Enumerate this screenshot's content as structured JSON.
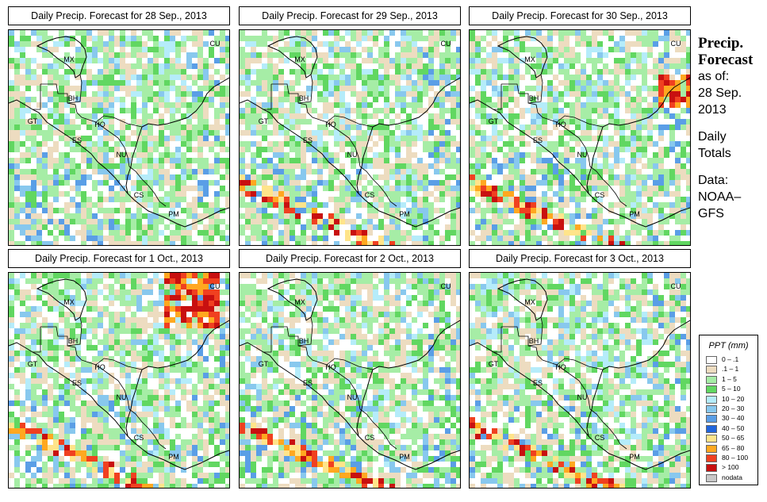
{
  "panels": [
    {
      "title": "Daily Precip. Forecast for  28 Sep., 2013",
      "seed": 11
    },
    {
      "title": "Daily Precip. Forecast for  29 Sep., 2013",
      "seed": 23
    },
    {
      "title": "Daily Precip. Forecast for  30 Sep., 2013",
      "seed": 37
    },
    {
      "title": "Daily Precip. Forecast for  1 Oct., 2013",
      "seed": 41
    },
    {
      "title": "Daily Precip. Forecast for  2 Oct., 2013",
      "seed": 53
    },
    {
      "title": "Daily Precip. Forecast for  3 Oct., 2013",
      "seed": 67
    }
  ],
  "country_labels": [
    "MX",
    "BH",
    "GT",
    "HO",
    "ES",
    "NU",
    "CS",
    "PM",
    "CU"
  ],
  "side": {
    "title_line1": "Precip.",
    "title_line2": "Forecast",
    "asof": "as of:",
    "date1": "28 Sep.",
    "date2": "2013",
    "daily": "Daily",
    "totals": "Totals",
    "data_label": "Data:",
    "source1": "NOAA–",
    "source2": "GFS"
  },
  "legend": {
    "title": "PPT (mm)",
    "classes": [
      {
        "label": "0 – .1",
        "color": "#ffffff"
      },
      {
        "label": ".1 – 1",
        "color": "#eddcc0"
      },
      {
        "label": "1 – 5",
        "color": "#a6eda6"
      },
      {
        "label": "5 – 10",
        "color": "#61d761"
      },
      {
        "label": "10 – 20",
        "color": "#b5ecfa"
      },
      {
        "label": "20 – 30",
        "color": "#88c8ee"
      },
      {
        "label": "30 – 40",
        "color": "#5a9ee6"
      },
      {
        "label": "40 – 50",
        "color": "#2166dd"
      },
      {
        "label": "50 – 65",
        "color": "#ffe48a"
      },
      {
        "label": "65 – 80",
        "color": "#ffa820"
      },
      {
        "label": "80 – 100",
        "color": "#f04020"
      },
      {
        "label": "> 100",
        "color": "#c81010"
      },
      {
        "label": "nodata",
        "color": "#c8c8c8"
      }
    ]
  }
}
